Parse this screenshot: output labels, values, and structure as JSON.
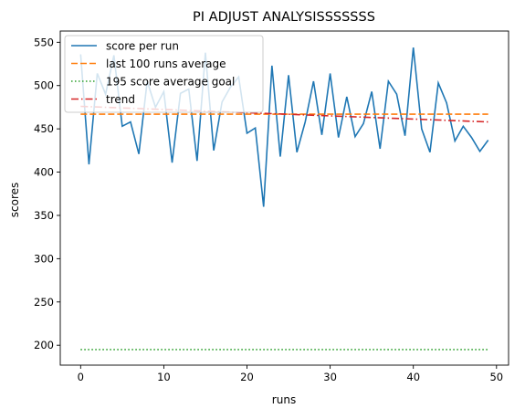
{
  "chart_data": {
    "type": "line",
    "title": "PI ADJUST ANALYSISSSSSSS",
    "xlabel": "runs",
    "ylabel": "scores",
    "xlim": [
      -2.45,
      51.45
    ],
    "ylim": [
      177,
      563
    ],
    "xticks": [
      0,
      10,
      20,
      30,
      40,
      50
    ],
    "yticks": [
      200,
      250,
      300,
      350,
      400,
      450,
      500,
      550
    ],
    "grid": false,
    "legend_position": "top-left",
    "series": [
      {
        "name": "score per run",
        "color": "#1f77b4",
        "style": "solid",
        "x": [
          0,
          1,
          2,
          3,
          4,
          5,
          6,
          7,
          8,
          9,
          10,
          11,
          12,
          13,
          14,
          15,
          16,
          17,
          18,
          19,
          20,
          21,
          22,
          23,
          24,
          25,
          26,
          27,
          28,
          29,
          30,
          31,
          32,
          33,
          34,
          35,
          36,
          37,
          38,
          39,
          40,
          41,
          42,
          43,
          44,
          45,
          46,
          47,
          48,
          49
        ],
        "y": [
          536,
          409,
          514,
          490,
          535,
          453,
          458,
          421,
          505,
          475,
          493,
          411,
          491,
          496,
          413,
          538,
          425,
          481,
          498,
          510,
          445,
          451,
          360,
          523,
          418,
          512,
          423,
          458,
          505,
          443,
          514,
          440,
          487,
          441,
          456,
          493,
          427,
          505,
          490,
          442,
          544,
          450,
          423,
          503,
          480,
          436,
          453,
          440,
          424,
          437
        ]
      },
      {
        "name": "last 100 runs average",
        "color": "#ff7f0e",
        "style": "dashed",
        "x": [
          0,
          49
        ],
        "y": [
          467,
          467
        ]
      },
      {
        "name": "195 score average goal",
        "color": "#2ca02c",
        "style": "dotted",
        "x": [
          0,
          49
        ],
        "y": [
          195,
          195
        ]
      },
      {
        "name": "trend",
        "color": "#d62728",
        "style": "dashdot",
        "x": [
          0,
          49
        ],
        "y": [
          476,
          458
        ]
      }
    ]
  }
}
